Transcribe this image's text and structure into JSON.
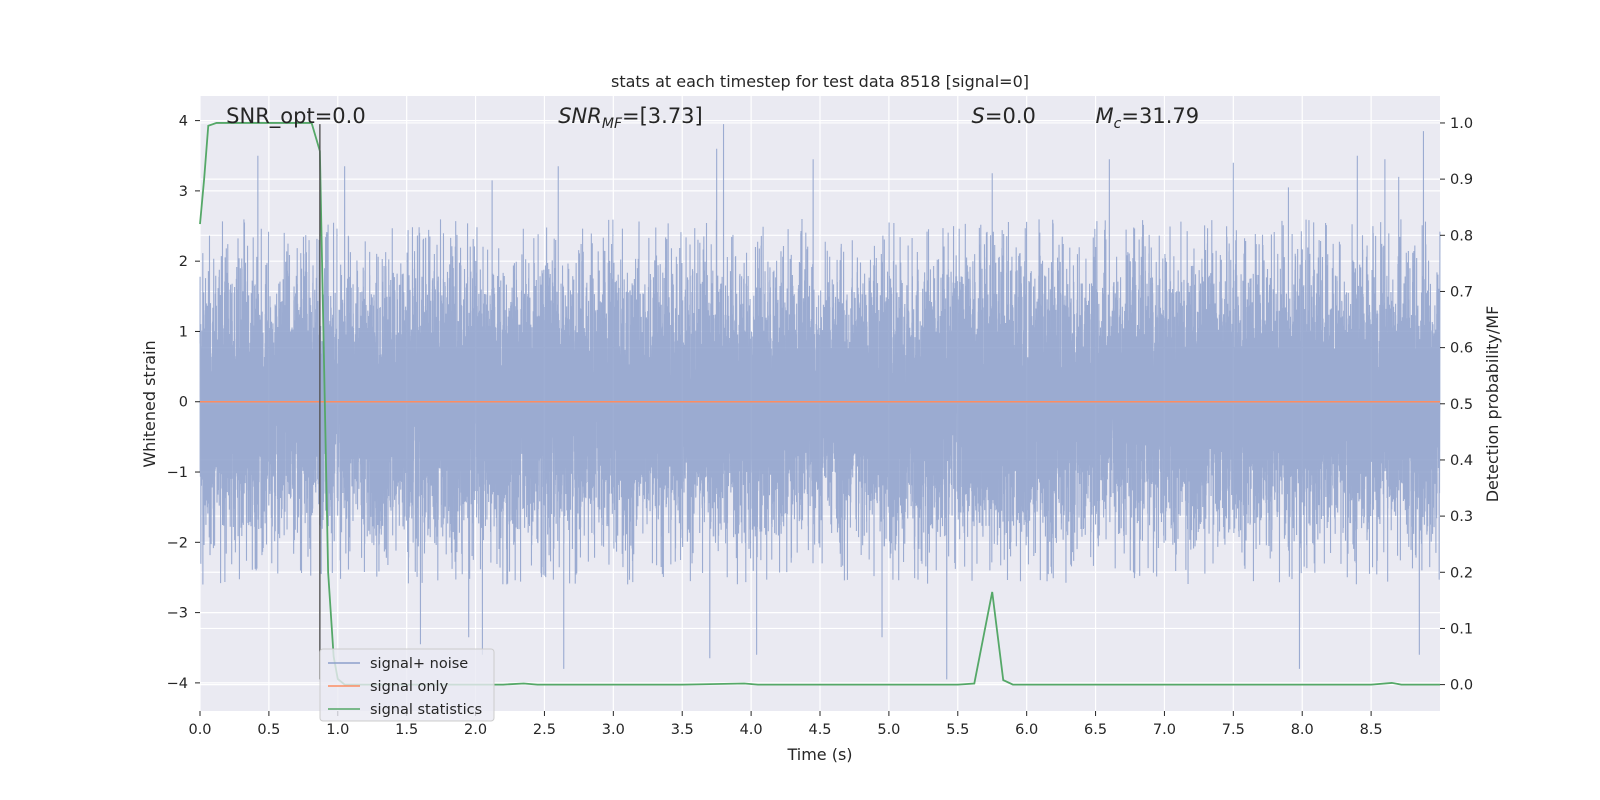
{
  "chart_data": {
    "type": "line",
    "title": "stats at each timestep for test data 8518 [signal=0]",
    "xlabel": "Time (s)",
    "ylabel_left": "Whitened strain",
    "ylabel_right": "Detection probability/MF",
    "xlim": [
      0.0,
      9.0
    ],
    "ylim_left": [
      -4.4,
      4.35
    ],
    "ylim_right": [
      -0.047,
      1.048
    ],
    "x_ticks": [
      "0.0",
      "0.5",
      "1.0",
      "1.5",
      "2.0",
      "2.5",
      "3.0",
      "3.5",
      "4.0",
      "4.5",
      "5.0",
      "5.5",
      "6.0",
      "6.5",
      "7.0",
      "7.5",
      "8.0",
      "8.5"
    ],
    "x_tick_values": [
      0.0,
      0.5,
      1.0,
      1.5,
      2.0,
      2.5,
      3.0,
      3.5,
      4.0,
      4.5,
      5.0,
      5.5,
      6.0,
      6.5,
      7.0,
      7.5,
      8.0,
      8.5
    ],
    "y_ticks_left": [
      "−4",
      "−3",
      "−2",
      "−1",
      "0",
      "1",
      "2",
      "3",
      "4"
    ],
    "y_tick_values_left": [
      -4,
      -3,
      -2,
      -1,
      0,
      1,
      2,
      3,
      4
    ],
    "y_ticks_right": [
      "0.0",
      "0.1",
      "0.2",
      "0.3",
      "0.4",
      "0.5",
      "0.6",
      "0.7",
      "0.8",
      "0.9",
      "1.0"
    ],
    "y_tick_values_right": [
      0.0,
      0.1,
      0.2,
      0.3,
      0.4,
      0.5,
      0.6,
      0.7,
      0.8,
      0.9,
      1.0
    ],
    "grid": true,
    "legend_position": "lower-left",
    "annotations": [
      {
        "text": "SNR_opt=0.0",
        "x": 0.19
      },
      {
        "text": "SNR",
        "sub": "MF",
        "rest": "=[3.73]",
        "x": 2.6,
        "italic": true
      },
      {
        "text": "S",
        "rest": "=0.0",
        "x": 5.6,
        "italic": true
      },
      {
        "text": "M",
        "sub": "c",
        "rest": "=31.79",
        "x": 6.5,
        "italic": true
      }
    ],
    "event_marker_x": 0.87,
    "series": [
      {
        "name": "signal+ noise",
        "color": "#8da0cb",
        "axis": "left",
        "kind": "noise",
        "sample_rate": 2048,
        "duration": 9.0,
        "typical_abs_max": 2.6,
        "extreme_values": [
          {
            "x": 0.42,
            "y": 3.5
          },
          {
            "x": 0.88,
            "y": -2.45
          },
          {
            "x": 1.05,
            "y": 3.35
          },
          {
            "x": 1.6,
            "y": -3.45
          },
          {
            "x": 1.95,
            "y": -3.35
          },
          {
            "x": 2.05,
            "y": -3.6
          },
          {
            "x": 2.12,
            "y": 3.15
          },
          {
            "x": 2.6,
            "y": 3.35
          },
          {
            "x": 2.64,
            "y": -3.8
          },
          {
            "x": 3.75,
            "y": 3.6
          },
          {
            "x": 3.8,
            "y": 3.95
          },
          {
            "x": 3.7,
            "y": -3.65
          },
          {
            "x": 4.04,
            "y": -3.6
          },
          {
            "x": 4.45,
            "y": 3.45
          },
          {
            "x": 4.95,
            "y": -3.35
          },
          {
            "x": 5.42,
            "y": -3.95
          },
          {
            "x": 5.75,
            "y": 3.25
          },
          {
            "x": 6.6,
            "y": 3.45
          },
          {
            "x": 7.5,
            "y": 3.4
          },
          {
            "x": 7.9,
            "y": 3.05
          },
          {
            "x": 7.98,
            "y": -3.8
          },
          {
            "x": 8.4,
            "y": 3.5
          },
          {
            "x": 8.6,
            "y": 3.45
          },
          {
            "x": 8.88,
            "y": 3.85
          },
          {
            "x": 8.85,
            "y": -3.6
          },
          {
            "x": 8.7,
            "y": 3.2
          }
        ]
      },
      {
        "name": "signal only",
        "color": "#fc8d62",
        "axis": "left",
        "x": [
          0.0,
          9.0
        ],
        "y": [
          0.0,
          0.0
        ]
      },
      {
        "name": "signal statistics",
        "color": "#55a868",
        "axis": "right",
        "x": [
          0.0,
          0.03,
          0.06,
          0.12,
          0.18,
          0.3,
          0.42,
          0.54,
          0.66,
          0.75,
          0.81,
          0.87,
          0.93,
          0.97,
          1.0,
          1.05,
          1.1,
          1.2,
          1.4,
          1.6,
          1.8,
          2.0,
          2.2,
          2.35,
          2.45,
          3.0,
          3.5,
          3.95,
          4.05,
          4.5,
          5.0,
          5.5,
          5.62,
          5.75,
          5.83,
          5.9,
          6.0,
          6.5,
          7.0,
          7.5,
          8.0,
          8.5,
          8.65,
          8.72,
          8.8,
          9.0
        ],
        "y": [
          0.82,
          0.9,
          0.995,
          1.0,
          1.0,
          1.0,
          1.0,
          1.0,
          1.0,
          1.0,
          1.0,
          0.95,
          0.2,
          0.05,
          0.01,
          0.0,
          0.0,
          0.0,
          0.0,
          0.0,
          0.0,
          0.0,
          0.0,
          0.002,
          0.0,
          0.0,
          0.0,
          0.002,
          0.0,
          0.0,
          0.0,
          0.0,
          0.002,
          0.165,
          0.008,
          0.0,
          0.0,
          0.0,
          0.0,
          0.0,
          0.0,
          0.0,
          0.003,
          0.0,
          0.0,
          0.0
        ]
      }
    ]
  }
}
